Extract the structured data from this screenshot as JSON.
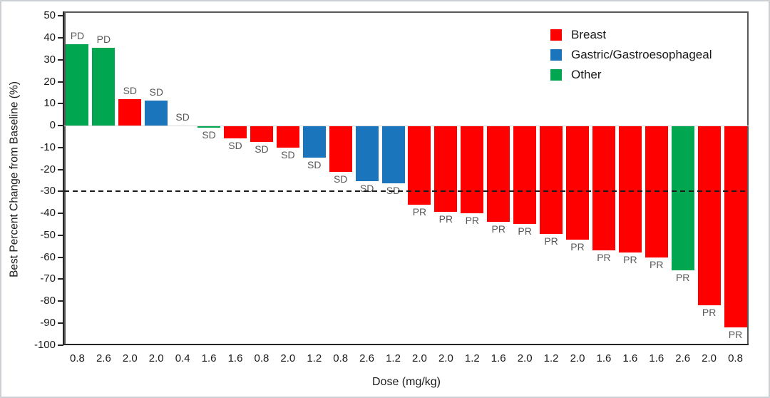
{
  "figure": {
    "y_axis_title": "Best Percent Change from Baseline (%)",
    "x_axis_title": "Dose (mg/kg)",
    "y_ticks": [
      50,
      40,
      30,
      20,
      10,
      0,
      -10,
      -20,
      -30,
      -40,
      -50,
      -60,
      -70,
      -80,
      -90,
      -100
    ],
    "legend": [
      {
        "label": "Breast",
        "color": "#FF0000"
      },
      {
        "label": "Gastric/Gastroesophageal",
        "color": "#1B75BC"
      },
      {
        "label": "Other",
        "color": "#00A650"
      }
    ]
  },
  "chart_data": {
    "type": "bar",
    "subtype": "waterfall",
    "title": "",
    "xlabel": "Dose (mg/kg)",
    "ylabel": "Best Percent Change from Baseline (%)",
    "ylim": [
      -100,
      50
    ],
    "grid": "off",
    "legend_position": "top-right-inside",
    "reference_line_y": -30,
    "reference_line_style": "dashed-black",
    "category_colors": {
      "Breast": "#FF0000",
      "Gastric/Gastroesophageal": "#1B75BC",
      "Other": "#00A650",
      "none": "transparent"
    },
    "categories": [
      "0.8",
      "2.6",
      "2.0",
      "2.0",
      "0.4",
      "1.6",
      "1.6",
      "0.8",
      "2.0",
      "1.2",
      "0.8",
      "2.6",
      "1.2",
      "2.0",
      "2.0",
      "1.2",
      "1.6",
      "2.0",
      "1.2",
      "2.0",
      "1.6",
      "1.6",
      "1.6",
      "2.6",
      "2.0",
      "0.8"
    ],
    "bars": [
      {
        "dose": "0.8",
        "value": 37,
        "response": "PD",
        "category": "Other"
      },
      {
        "dose": "2.6",
        "value": 35.5,
        "response": "PD",
        "category": "Other"
      },
      {
        "dose": "2.0",
        "value": 12,
        "response": "SD",
        "category": "Breast"
      },
      {
        "dose": "2.0",
        "value": 11.5,
        "response": "SD",
        "category": "Gastric/Gastroesophageal"
      },
      {
        "dose": "0.4",
        "value": 0,
        "response": "SD",
        "category": "none"
      },
      {
        "dose": "1.6",
        "value": -1,
        "response": "SD",
        "category": "Other"
      },
      {
        "dose": "1.6",
        "value": -6,
        "response": "SD",
        "category": "Breast"
      },
      {
        "dose": "0.8",
        "value": -7.5,
        "response": "SD",
        "category": "Breast"
      },
      {
        "dose": "2.0",
        "value": -10,
        "response": "SD",
        "category": "Breast"
      },
      {
        "dose": "1.2",
        "value": -14.5,
        "response": "SD",
        "category": "Gastric/Gastroesophageal"
      },
      {
        "dose": "0.8",
        "value": -21,
        "response": "SD",
        "category": "Breast"
      },
      {
        "dose": "2.6",
        "value": -25.5,
        "response": "SD",
        "category": "Gastric/Gastroesophageal"
      },
      {
        "dose": "1.2",
        "value": -26.5,
        "response": "SD",
        "category": "Gastric/Gastroesophageal"
      },
      {
        "dose": "2.0",
        "value": -36,
        "response": "PR",
        "category": "Breast"
      },
      {
        "dose": "2.0",
        "value": -39.5,
        "response": "PR",
        "category": "Breast"
      },
      {
        "dose": "1.2",
        "value": -40,
        "response": "PR",
        "category": "Breast"
      },
      {
        "dose": "1.6",
        "value": -44,
        "response": "PR",
        "category": "Breast"
      },
      {
        "dose": "2.0",
        "value": -45,
        "response": "PR",
        "category": "Breast"
      },
      {
        "dose": "1.2",
        "value": -49.5,
        "response": "PR",
        "category": "Breast"
      },
      {
        "dose": "2.0",
        "value": -52,
        "response": "PR",
        "category": "Breast"
      },
      {
        "dose": "1.6",
        "value": -57,
        "response": "PR",
        "category": "Breast"
      },
      {
        "dose": "1.6",
        "value": -58,
        "response": "PR",
        "category": "Breast"
      },
      {
        "dose": "1.6",
        "value": -60,
        "response": "PR",
        "category": "Breast"
      },
      {
        "dose": "2.6",
        "value": -66,
        "response": "PR",
        "category": "Other"
      },
      {
        "dose": "2.0",
        "value": -82,
        "response": "PR",
        "category": "Breast"
      },
      {
        "dose": "0.8",
        "value": -92,
        "response": "PR",
        "category": "Breast"
      }
    ]
  }
}
